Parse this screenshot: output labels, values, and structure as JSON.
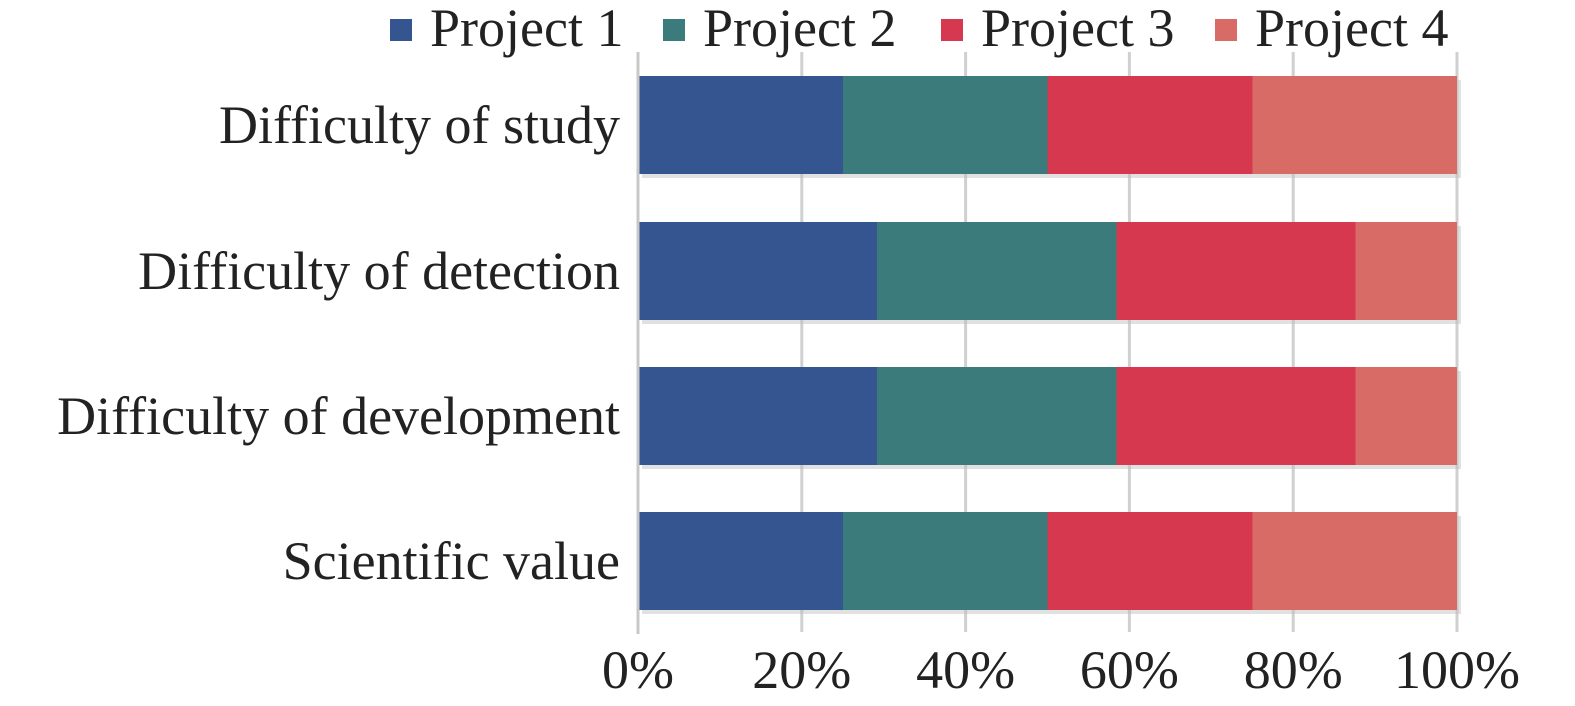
{
  "chart_data": {
    "type": "bar",
    "orientation": "horizontal",
    "stacked": "percent",
    "title": "",
    "xlabel": "",
    "ylabel": "",
    "xlim": [
      0,
      100
    ],
    "x_ticks": [
      "0%",
      "20%",
      "40%",
      "60%",
      "80%",
      "100%"
    ],
    "grid": "vertical",
    "legend_position": "top",
    "categories": [
      "Difficulty of study",
      "Difficulty of detection",
      "Difficulty of development",
      "Scientific value"
    ],
    "series": [
      {
        "name": "Project 1",
        "color": "#34558f",
        "values": [
          25,
          29.2,
          29.2,
          25
        ]
      },
      {
        "name": "Project 2",
        "color": "#3b7b7b",
        "values": [
          25,
          29.2,
          29.2,
          25
        ]
      },
      {
        "name": "Project 3",
        "color": "#d6384f",
        "values": [
          25,
          29.2,
          29.2,
          25
        ]
      },
      {
        "name": "Project 4",
        "color": "#d96b66",
        "values": [
          25,
          12.4,
          12.4,
          25
        ]
      }
    ]
  }
}
